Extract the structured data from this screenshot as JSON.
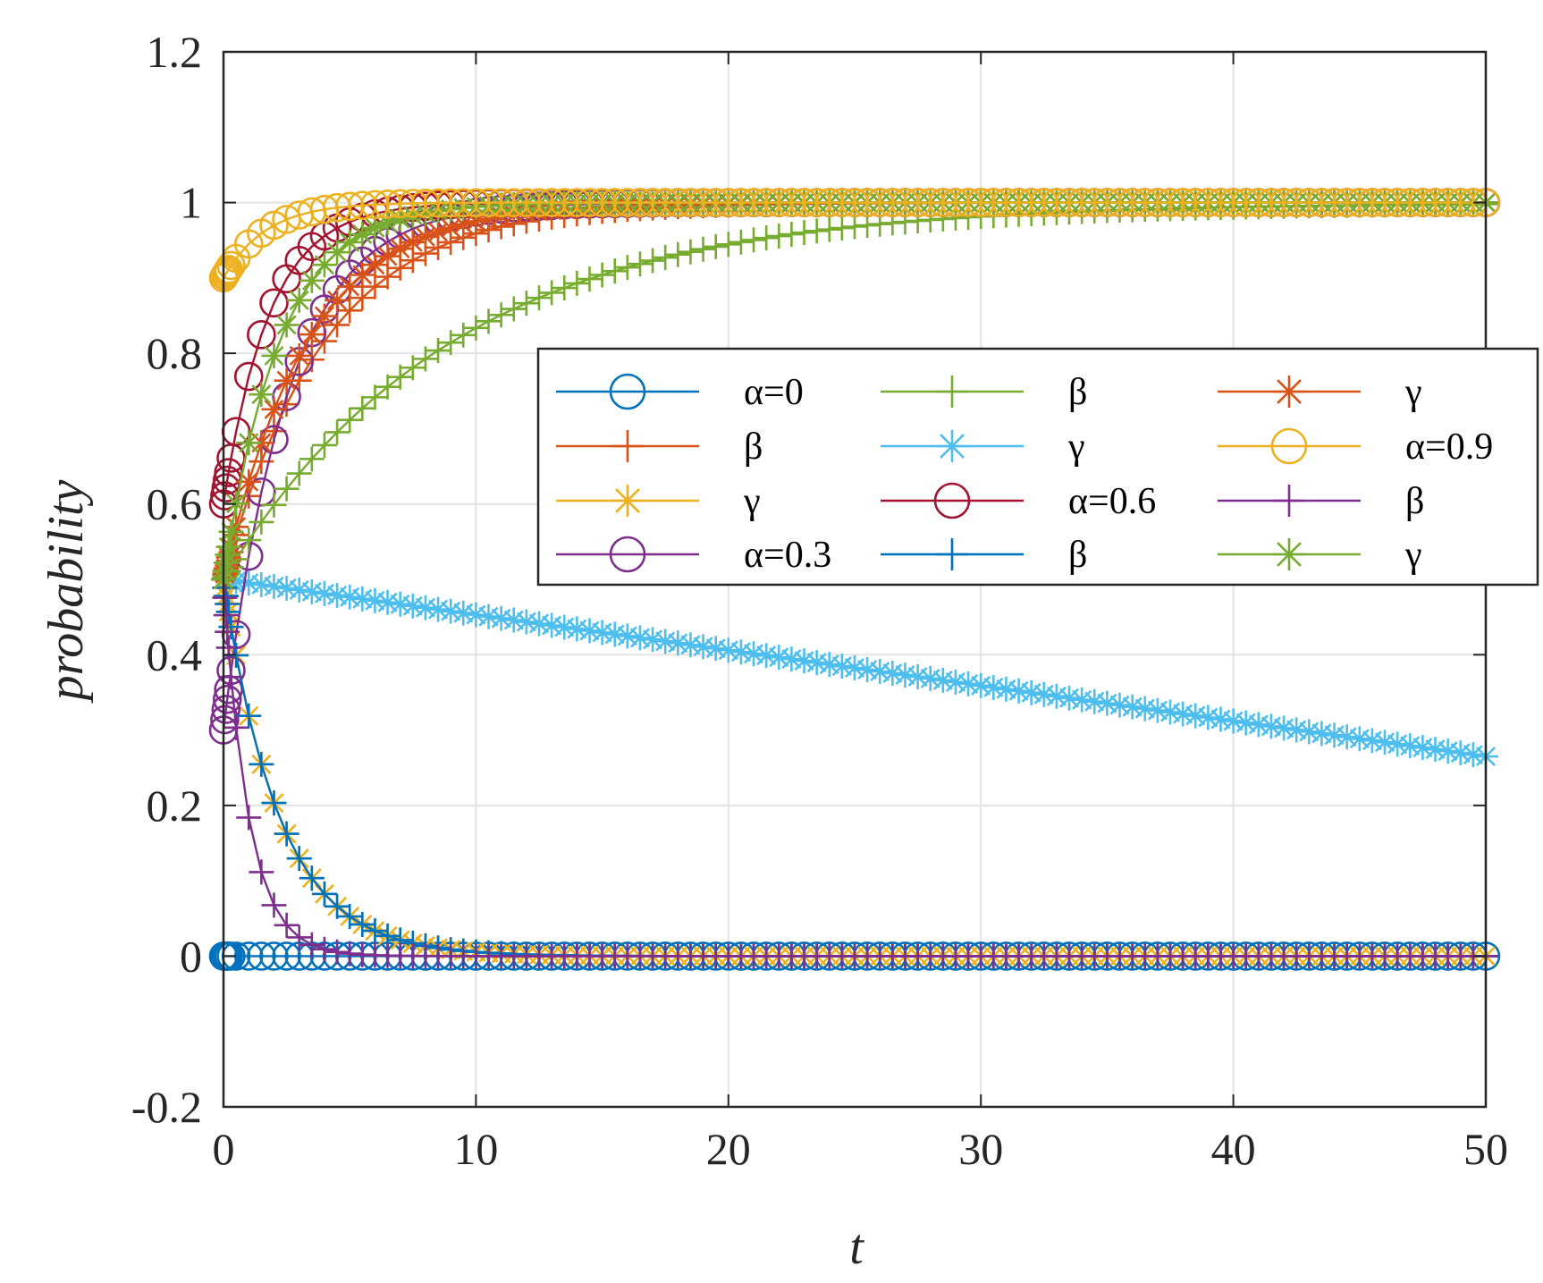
{
  "chart_data": {
    "type": "line",
    "title": "",
    "xlabel": "t",
    "ylabel": "probability",
    "xlim": [
      0,
      50
    ],
    "ylim": [
      -0.2,
      1.2
    ],
    "xticks": [
      "0",
      "10",
      "20",
      "30",
      "40",
      "50"
    ],
    "yticks": [
      "-0.2",
      "0",
      "0.2",
      "0.4",
      "0.6",
      "0.8",
      "1",
      "1.2"
    ],
    "grid": true,
    "legend_position": "center-right",
    "legend_columns": 3,
    "series": [
      {
        "name": "α=0",
        "color": "#0072BD",
        "marker": "circle",
        "initial": 0,
        "final": 0,
        "rate": 1.0
      },
      {
        "name": "β",
        "color": "#D95319",
        "marker": "plus",
        "initial": 0.5,
        "final": 1,
        "rate": 0.25
      },
      {
        "name": "γ",
        "color": "#EDB120",
        "marker": "asterisk",
        "initial": 0.5,
        "final": 0,
        "rate": 0.45
      },
      {
        "name": "α=0.3",
        "color": "#7E2F8E",
        "marker": "circle",
        "initial": 0.3,
        "final": 1,
        "rate": 0.4
      },
      {
        "name": "β",
        "color": "#77AC30",
        "marker": "plus",
        "initial": 0.5,
        "final": 1,
        "rate": 0.11
      },
      {
        "name": "γ",
        "color": "#4DBEEE",
        "marker": "asterisk",
        "initial": 0.5,
        "final": 0.265,
        "rate": 1.0
      },
      {
        "name": "α=0.6",
        "color": "#A2142F",
        "marker": "circle",
        "initial": 0.6,
        "final": 1,
        "rate": 0.55
      },
      {
        "name": "β",
        "color": "#0072BD",
        "marker": "plus",
        "initial": 0.5,
        "final": 0,
        "rate": 0.45
      },
      {
        "name": "γ",
        "color": "#D95319",
        "marker": "asterisk",
        "initial": 0.5,
        "final": 1,
        "rate": 0.3
      },
      {
        "name": "α=0.9",
        "color": "#EDB120",
        "marker": "circle",
        "initial": 0.9,
        "final": 1,
        "rate": 0.6
      },
      {
        "name": "β",
        "color": "#7E2F8E",
        "marker": "plus",
        "initial": 0.5,
        "final": 0,
        "rate": 1.0
      },
      {
        "name": "γ",
        "color": "#77AC30",
        "marker": "asterisk",
        "initial": 0.5,
        "final": 1,
        "rate": 0.45
      }
    ]
  }
}
